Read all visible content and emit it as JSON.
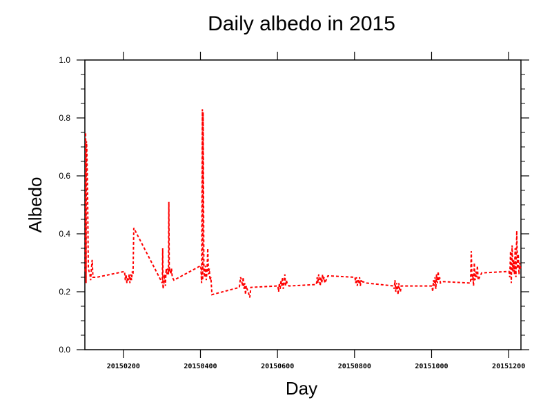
{
  "chart_data": {
    "type": "line",
    "title": "Daily albedo in 2015",
    "xlabel": "Day",
    "ylabel": "Albedo",
    "xlim": [
      20150100,
      20151232
    ],
    "ylim": [
      0.0,
      1.0
    ],
    "x_ticks": [
      20150200,
      20150400,
      20150600,
      20150800,
      20151000,
      20151200
    ],
    "x_tick_labels": [
      "20150200",
      "20150400",
      "20150600",
      "20150800",
      "20151000",
      "20151200"
    ],
    "y_ticks": [
      0.0,
      0.2,
      0.4,
      0.6,
      0.8,
      1.0
    ],
    "y_tick_labels": [
      "0.0",
      "0.2",
      "0.4",
      "0.6",
      "0.8",
      "1.0"
    ],
    "grid": false,
    "line_color": "#ff0000",
    "line_style": "dashed",
    "series": [
      {
        "x": [
          20150101,
          20150102,
          20150103,
          20150104,
          20150105,
          20150107,
          20150109,
          20150111,
          20150113,
          20150115,
          20150117,
          20150119,
          20150121,
          20150131,
          20150203,
          20150205,
          20150207,
          20150209,
          20150211,
          20150213,
          20150215,
          20150217,
          20150219,
          20150221,
          20150223,
          20150225,
          20150227,
          20150301,
          20150302,
          20150303,
          20150305,
          20150307,
          20150309,
          20150311,
          20150313,
          20150315,
          20150317,
          20150318,
          20150319,
          20150321,
          20150323,
          20150325,
          20150327,
          20150331,
          20150401,
          20150403,
          20150405,
          20150406,
          20150407,
          20150409,
          20150411,
          20150413,
          20150415,
          20150417,
          20150419,
          20150421,
          20150423,
          20150425,
          20150427,
          20150430,
          20150501,
          20150504,
          20150507,
          20150509,
          20150511,
          20150513,
          20150515,
          20150517,
          20150519,
          20150521,
          20150524,
          20150528,
          20150531,
          20150601,
          20150603,
          20150605,
          20150607,
          20150609,
          20150611,
          20150613,
          20150615,
          20150617,
          20150619,
          20150621,
          20150623,
          20150625,
          20150630,
          20150701,
          20150703,
          20150705,
          20150707,
          20150709,
          20150711,
          20150713,
          20150715,
          20150717,
          20150719,
          20150721,
          20150723,
          20150731,
          20150801,
          20150803,
          20150805,
          20150807,
          20150809,
          20150811,
          20150813,
          20150815,
          20150817,
          20150819,
          20150821,
          20150831,
          20150901,
          20150903,
          20150905,
          20150907,
          20150909,
          20150911,
          20150913,
          20150915,
          20150917,
          20150919,
          20150921,
          20150930,
          20151001,
          20151003,
          20151005,
          20151007,
          20151009,
          20151011,
          20151013,
          20151015,
          20151017,
          20151019,
          20151021,
          20151023,
          20151031,
          20151101,
          20151103,
          20151105,
          20151107,
          20151109,
          20151111,
          20151113,
          20151115,
          20151117,
          20151119,
          20151121,
          20151130,
          20151201,
          20151203,
          20151205,
          20151207,
          20151209,
          20151211,
          20151213,
          20151215,
          20151217,
          20151219,
          20151221,
          20151223,
          20151225,
          20151227,
          20151229,
          20151231
        ],
        "y": [
          0.27,
          0.75,
          0.23,
          0.72,
          0.7,
          0.55,
          0.28,
          0.27,
          0.26,
          0.24,
          0.28,
          0.31,
          0.25,
          0.25,
          0.27,
          0.24,
          0.26,
          0.23,
          0.25,
          0.24,
          0.26,
          0.23,
          0.26,
          0.24,
          0.27,
          0.26,
          0.42,
          0.23,
          0.35,
          0.21,
          0.23,
          0.26,
          0.22,
          0.28,
          0.26,
          0.28,
          0.26,
          0.51,
          0.27,
          0.28,
          0.26,
          0.28,
          0.25,
          0.24,
          0.29,
          0.23,
          0.83,
          0.24,
          0.82,
          0.27,
          0.25,
          0.29,
          0.24,
          0.27,
          0.35,
          0.26,
          0.28,
          0.24,
          0.25,
          0.19,
          0.215,
          0.25,
          0.24,
          0.22,
          0.25,
          0.21,
          0.23,
          0.19,
          0.22,
          0.21,
          0.2,
          0.18,
          0.215,
          0.22,
          0.2,
          0.23,
          0.21,
          0.24,
          0.22,
          0.25,
          0.21,
          0.23,
          0.26,
          0.22,
          0.24,
          0.23,
          0.22,
          0.225,
          0.25,
          0.23,
          0.26,
          0.24,
          0.22,
          0.25,
          0.23,
          0.26,
          0.24,
          0.25,
          0.23,
          0.255,
          0.25,
          0.23,
          0.25,
          0.22,
          0.24,
          0.23,
          0.25,
          0.22,
          0.24,
          0.23,
          0.235,
          0.23,
          0.22,
          0.21,
          0.24,
          0.2,
          0.23,
          0.22,
          0.19,
          0.23,
          0.21,
          0.2,
          0.22,
          0.22,
          0.22,
          0.2,
          0.24,
          0.22,
          0.25,
          0.21,
          0.26,
          0.23,
          0.27,
          0.24,
          0.25,
          0.23,
          0.235,
          0.23,
          0.34,
          0.24,
          0.26,
          0.22,
          0.3,
          0.24,
          0.27,
          0.25,
          0.29,
          0.24,
          0.265,
          0.27,
          0.25,
          0.34,
          0.23,
          0.36,
          0.27,
          0.31,
          0.26,
          0.35,
          0.25,
          0.41,
          0.28,
          0.33,
          0.26,
          0.3,
          0.28
        ]
      }
    ]
  }
}
